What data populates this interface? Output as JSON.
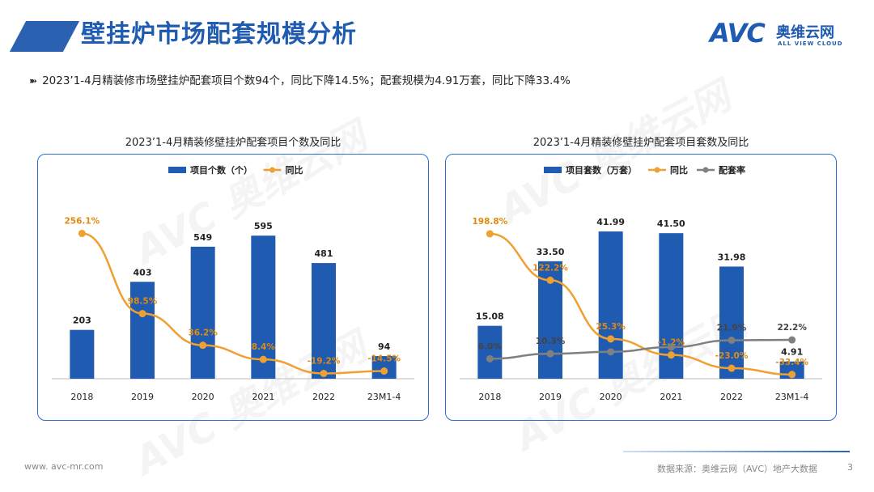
{
  "header": {
    "title": "壁挂炉市场配套规模分析",
    "logo_mark": "AVC",
    "logo_cn": "奥维云网",
    "logo_en": "ALL VIEW CLOUD"
  },
  "summary": {
    "arrow": "➽",
    "text": "2023’1-4月精装修市场壁挂炉配套项目个数94个，同比下降14.5%；配套规模为4.91万套，同比下降33.4%"
  },
  "watermark": "AVC 奥维云网",
  "footer": {
    "url": "www. avc-mr.com",
    "source": "数据来源：奥维云网（AVC）地产大数据",
    "page": "3"
  },
  "colors": {
    "bar": "#1f5bb0",
    "line_yoy": "#f0a030",
    "line_rate": "#808080",
    "panel_border": "#2f6fd0"
  },
  "chart_data": [
    {
      "type": "bar",
      "title": "2023’1-4月精装修壁挂炉配套项目个数及同比",
      "categories": [
        "2018",
        "2019",
        "2020",
        "2021",
        "2022",
        "23M1-4"
      ],
      "series": [
        {
          "name": "项目个数（个）",
          "kind": "bar",
          "values": [
            203,
            403,
            549,
            595,
            481,
            94
          ],
          "labels": [
            "203",
            "403",
            "549",
            "595",
            "481",
            "94"
          ]
        },
        {
          "name": "同比",
          "kind": "line",
          "values": [
            256.1,
            98.5,
            36.2,
            8.4,
            -19.2,
            -14.5
          ],
          "labels": [
            "256.1%",
            "98.5%",
            "36.2%",
            "8.4%",
            "-19.2%",
            "-14.5%"
          ]
        }
      ],
      "legend": "top",
      "grid": false
    },
    {
      "type": "bar",
      "title": "2023’1-4月精装修壁挂炉配套项目套数及同比",
      "categories": [
        "2018",
        "2019",
        "2020",
        "2021",
        "2022",
        "23M1-4"
      ],
      "series": [
        {
          "name": "项目套数（万套）",
          "kind": "bar",
          "values": [
            15.08,
            33.5,
            41.99,
            41.5,
            31.98,
            4.91
          ],
          "labels": [
            "15.08",
            "33.50",
            "41.99",
            "41.50",
            "31.98",
            "4.91"
          ]
        },
        {
          "name": "同比",
          "kind": "line",
          "values": [
            198.8,
            122.2,
            25.3,
            -1.2,
            -23.0,
            -33.4
          ],
          "labels": [
            "198.8%",
            "122.2%",
            "25.3%",
            "-1.2%",
            "-23.0%",
            "-33.4%"
          ]
        },
        {
          "name": "配套率",
          "kind": "line",
          "values": [
            6.0,
            10.3,
            12.0,
            16.0,
            21.9,
            22.2
          ],
          "labels": [
            "6.0%",
            "10.3%",
            "",
            "",
            "21.9%",
            "22.2%"
          ]
        }
      ],
      "legend": "top",
      "grid": false
    }
  ]
}
